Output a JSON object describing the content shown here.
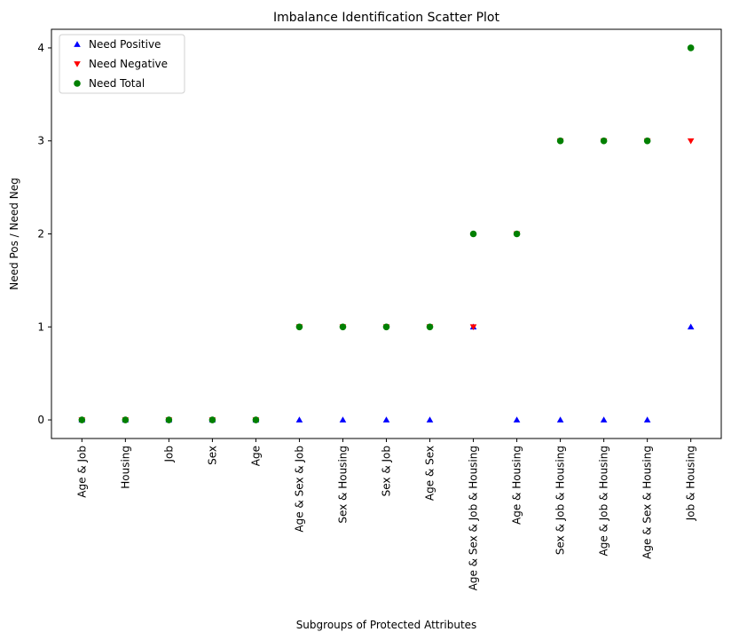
{
  "chart_data": {
    "type": "scatter",
    "title": "Imbalance Identification Scatter Plot",
    "xlabel": "Subgroups of Protected Attributes",
    "ylabel": "Need Pos / Need Neg",
    "categories": [
      "Age & Job",
      "Housing",
      "Job",
      "Sex",
      "Age",
      "Age & Sex & Job",
      "Sex & Housing",
      "Sex & Job",
      "Age & Sex",
      "Age & Sex & Job & Housing",
      "Age & Housing",
      "Sex & Job & Housing",
      "Age & Job & Housing",
      "Age & Sex & Housing",
      "Job & Housing"
    ],
    "yticks": [
      0,
      1,
      2,
      3,
      4
    ],
    "ylim": [
      -0.2,
      4.2
    ],
    "grid": false,
    "legend_position": "top-left",
    "series": [
      {
        "name": "Need Positive",
        "marker": "triangle-up",
        "color": "#0000ff",
        "values": [
          0,
          0,
          0,
          0,
          0,
          0,
          0,
          0,
          0,
          1,
          0,
          0,
          0,
          0,
          1
        ]
      },
      {
        "name": "Need Negative",
        "marker": "triangle-down",
        "color": "#ff0000",
        "values": [
          0,
          0,
          0,
          0,
          0,
          1,
          1,
          1,
          1,
          1,
          2,
          3,
          3,
          3,
          3
        ]
      },
      {
        "name": "Need Total",
        "marker": "circle",
        "color": "#008000",
        "values": [
          0,
          0,
          0,
          0,
          0,
          1,
          1,
          1,
          1,
          2,
          2,
          3,
          3,
          3,
          4
        ]
      }
    ]
  }
}
